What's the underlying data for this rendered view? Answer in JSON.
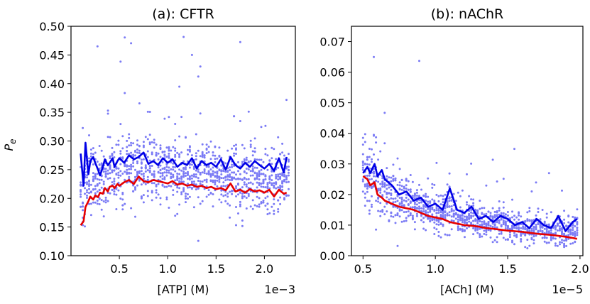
{
  "chart_data": [
    {
      "type": "line",
      "title": "(a): CFTR",
      "xlabel": "[ATP] (M)",
      "ylabel": "P",
      "ylabel_sub": "e",
      "x_offset_text": "1e−3",
      "xlim": [
        0.0,
        2.32
      ],
      "ylim": [
        0.1,
        0.5
      ],
      "xticks": [
        0.5,
        1.0,
        1.5,
        2.0
      ],
      "xtick_labels": [
        "0.5",
        "1.0",
        "1.5",
        "2.0"
      ],
      "yticks": [
        0.1,
        0.15,
        0.2,
        0.25,
        0.3,
        0.35,
        0.4,
        0.45,
        0.5
      ],
      "ytick_labels": [
        "0.10",
        "0.15",
        "0.20",
        "0.25",
        "0.30",
        "0.35",
        "0.40",
        "0.45",
        "0.50"
      ],
      "scatter": {
        "color": "#7b7bf5",
        "x_range": [
          0.1,
          2.25
        ],
        "points_per_x": 12,
        "x_count": 100
      },
      "series": [
        {
          "color": "#0000e6",
          "x": [
            0.1,
            0.13,
            0.15,
            0.18,
            0.2,
            0.23,
            0.25,
            0.28,
            0.3,
            0.33,
            0.35,
            0.38,
            0.4,
            0.43,
            0.45,
            0.48,
            0.5,
            0.55,
            0.6,
            0.65,
            0.7,
            0.75,
            0.8,
            0.85,
            0.9,
            0.95,
            1.0,
            1.05,
            1.1,
            1.15,
            1.2,
            1.25,
            1.3,
            1.35,
            1.4,
            1.45,
            1.5,
            1.55,
            1.6,
            1.65,
            1.7,
            1.75,
            1.8,
            1.85,
            1.9,
            1.95,
            2.0,
            2.05,
            2.1,
            2.15,
            2.2,
            2.23
          ],
          "y": [
            0.278,
            0.222,
            0.297,
            0.242,
            0.265,
            0.272,
            0.262,
            0.25,
            0.24,
            0.255,
            0.268,
            0.258,
            0.262,
            0.27,
            0.255,
            0.265,
            0.27,
            0.262,
            0.275,
            0.268,
            0.272,
            0.28,
            0.26,
            0.265,
            0.258,
            0.27,
            0.262,
            0.268,
            0.255,
            0.262,
            0.258,
            0.27,
            0.252,
            0.265,
            0.258,
            0.262,
            0.255,
            0.268,
            0.25,
            0.272,
            0.258,
            0.252,
            0.262,
            0.255,
            0.265,
            0.258,
            0.252,
            0.26,
            0.248,
            0.27,
            0.245,
            0.272
          ]
        },
        {
          "color": "#e60000",
          "x": [
            0.1,
            0.13,
            0.15,
            0.18,
            0.2,
            0.23,
            0.25,
            0.28,
            0.3,
            0.33,
            0.35,
            0.38,
            0.4,
            0.43,
            0.45,
            0.48,
            0.5,
            0.55,
            0.6,
            0.65,
            0.7,
            0.75,
            0.8,
            0.85,
            0.9,
            0.95,
            1.0,
            1.05,
            1.1,
            1.15,
            1.2,
            1.25,
            1.3,
            1.35,
            1.4,
            1.45,
            1.5,
            1.55,
            1.6,
            1.65,
            1.7,
            1.75,
            1.8,
            1.85,
            1.9,
            1.95,
            2.0,
            2.05,
            2.1,
            2.15,
            2.2,
            2.23
          ],
          "y": [
            0.153,
            0.16,
            0.185,
            0.195,
            0.203,
            0.198,
            0.205,
            0.202,
            0.21,
            0.208,
            0.218,
            0.212,
            0.22,
            0.222,
            0.218,
            0.225,
            0.222,
            0.228,
            0.232,
            0.225,
            0.238,
            0.23,
            0.228,
            0.232,
            0.23,
            0.228,
            0.226,
            0.23,
            0.224,
            0.226,
            0.222,
            0.224,
            0.22,
            0.222,
            0.218,
            0.22,
            0.216,
            0.218,
            0.214,
            0.226,
            0.212,
            0.215,
            0.21,
            0.216,
            0.212,
            0.214,
            0.21,
            0.215,
            0.203,
            0.215,
            0.208,
            0.21
          ]
        }
      ]
    },
    {
      "type": "line",
      "title": "(b): nAChR",
      "xlabel": "[ACh] (M)",
      "ylabel": "",
      "x_offset_text": "1e−5",
      "xlim": [
        0.42,
        2.02
      ],
      "ylim": [
        0.0,
        0.075
      ],
      "xticks": [
        0.5,
        1.0,
        1.5,
        2.0
      ],
      "xtick_labels": [
        "0.5",
        "1.0",
        "1.5",
        "2.0"
      ],
      "yticks": [
        0.0,
        0.01,
        0.02,
        0.03,
        0.04,
        0.05,
        0.06,
        0.07
      ],
      "ytick_labels": [
        "0.00",
        "0.01",
        "0.02",
        "0.03",
        "0.04",
        "0.05",
        "0.06",
        "0.07"
      ],
      "scatter": {
        "color": "#7b7bf5",
        "x_range": [
          0.5,
          1.98
        ],
        "points_per_x": 12,
        "x_count": 100
      },
      "series": [
        {
          "color": "#0000e6",
          "x": [
            0.5,
            0.53,
            0.55,
            0.58,
            0.6,
            0.63,
            0.65,
            0.7,
            0.75,
            0.8,
            0.85,
            0.9,
            0.95,
            1.0,
            1.05,
            1.1,
            1.15,
            1.2,
            1.25,
            1.3,
            1.35,
            1.4,
            1.45,
            1.5,
            1.55,
            1.6,
            1.65,
            1.7,
            1.75,
            1.8,
            1.85,
            1.9,
            1.95,
            1.98
          ],
          "y": [
            0.027,
            0.029,
            0.027,
            0.03,
            0.026,
            0.028,
            0.025,
            0.023,
            0.02,
            0.021,
            0.018,
            0.019,
            0.016,
            0.017,
            0.015,
            0.022,
            0.015,
            0.014,
            0.016,
            0.012,
            0.013,
            0.011,
            0.013,
            0.012,
            0.01,
            0.011,
            0.009,
            0.012,
            0.01,
            0.009,
            0.013,
            0.008,
            0.011,
            0.012
          ]
        },
        {
          "color": "#e60000",
          "x": [
            0.5,
            0.53,
            0.55,
            0.58,
            0.6,
            0.63,
            0.65,
            0.7,
            0.75,
            0.8,
            0.85,
            0.9,
            0.95,
            1.0,
            1.05,
            1.1,
            1.15,
            1.2,
            1.25,
            1.3,
            1.35,
            1.4,
            1.45,
            1.5,
            1.55,
            1.6,
            1.65,
            1.7,
            1.75,
            1.8,
            1.85,
            1.9,
            1.95,
            1.98
          ],
          "y": [
            0.026,
            0.025,
            0.023,
            0.024,
            0.02,
            0.019,
            0.018,
            0.017,
            0.016,
            0.0155,
            0.015,
            0.014,
            0.013,
            0.0125,
            0.012,
            0.011,
            0.0105,
            0.01,
            0.0098,
            0.0095,
            0.009,
            0.0088,
            0.0085,
            0.0082,
            0.008,
            0.0078,
            0.0075,
            0.0072,
            0.007,
            0.0068,
            0.0065,
            0.0062,
            0.0058,
            0.0055
          ]
        }
      ]
    }
  ]
}
